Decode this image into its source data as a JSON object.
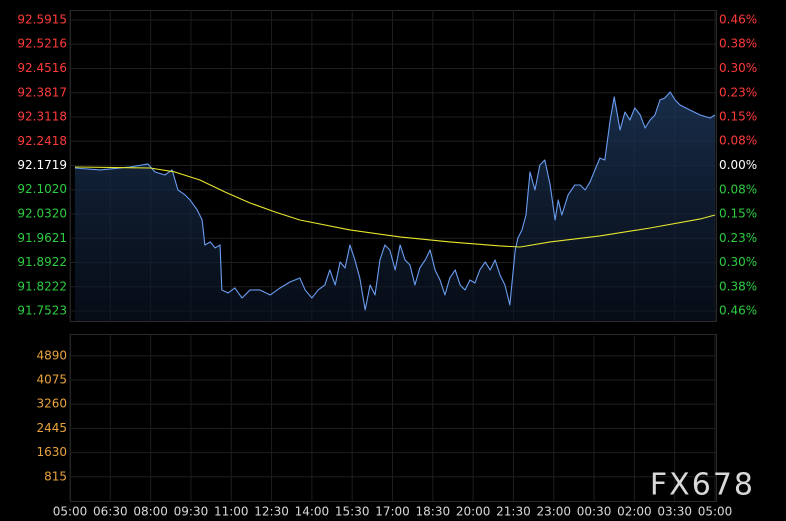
{
  "chart_data": [
    {
      "type": "line",
      "up_color": "#ff3b3b",
      "down_color": "#2ecc40",
      "flat_color": "#ffffff",
      "xlim": [
        0,
        1440
      ],
      "xticks": [
        {
          "value": 0,
          "label": "05:00"
        },
        {
          "value": 90,
          "label": "06:30"
        },
        {
          "value": 180,
          "label": "08:00"
        },
        {
          "value": 270,
          "label": "09:30"
        },
        {
          "value": 360,
          "label": "11:00"
        },
        {
          "value": 450,
          "label": "12:30"
        },
        {
          "value": 540,
          "label": "14:00"
        },
        {
          "value": 630,
          "label": "15:30"
        },
        {
          "value": 720,
          "label": "17:00"
        },
        {
          "value": 810,
          "label": "18:30"
        },
        {
          "value": 900,
          "label": "20:00"
        },
        {
          "value": 990,
          "label": "21:30"
        },
        {
          "value": 1080,
          "label": "23:00"
        },
        {
          "value": 1170,
          "label": "00:30"
        },
        {
          "value": 1260,
          "label": "02:00"
        },
        {
          "value": 1350,
          "label": "03:30"
        },
        {
          "value": 1440,
          "label": "05:00"
        }
      ],
      "ylim": [
        91.7523,
        92.5915
      ],
      "yticks": [
        92.5915,
        92.5216,
        92.4516,
        92.3817,
        92.3118,
        92.2418,
        92.1719,
        {
          "value": 92.102,
          "label": "92.1020"
        },
        {
          "value": 92.032,
          "label": "92.0320"
        },
        91.9621,
        91.8922,
        91.8222,
        91.7523
      ],
      "y2lim": [
        -0.4552,
        0.4552
      ],
      "y2ticks": [
        {
          "value": 0.4552,
          "label": "0.46%"
        },
        {
          "value": 0.3794,
          "label": "0.38%"
        },
        {
          "value": 0.3035,
          "label": "0.30%"
        },
        {
          "value": 0.2276,
          "label": "0.23%"
        },
        {
          "value": 0.1518,
          "label": "0.15%"
        },
        {
          "value": 0.0759,
          "label": "0.08%"
        },
        {
          "value": 0,
          "label": "0.00%"
        },
        {
          "value": -0.0759,
          "label": "0.08%"
        },
        {
          "value": -0.1518,
          "label": "0.15%"
        },
        {
          "value": -0.2276,
          "label": "0.23%"
        },
        {
          "value": -0.3035,
          "label": "0.30%"
        },
        {
          "value": -0.3794,
          "label": "0.38%"
        },
        {
          "value": -0.4552,
          "label": "0.46%"
        }
      ],
      "grid": true,
      "series": [
        {
          "color": "#6a9cf0",
          "area": true,
          "x": [
            11,
            67,
            134,
            174,
            190,
            212,
            228,
            241,
            257,
            268,
            284,
            295,
            301,
            313,
            324,
            335,
            339,
            353,
            368,
            384,
            402,
            424,
            447,
            469,
            491,
            513,
            525,
            540,
            554,
            569,
            580,
            592,
            603,
            614,
            625,
            636,
            647,
            659,
            670,
            681,
            692,
            703,
            714,
            726,
            737,
            748,
            759,
            770,
            781,
            793,
            804,
            815,
            826,
            837,
            848,
            860,
            871,
            882,
            893,
            904,
            915,
            927,
            938,
            949,
            960,
            971,
            982,
            994,
            1000,
            1009,
            1018,
            1027,
            1038,
            1049,
            1060,
            1072,
            1083,
            1090,
            1098,
            1112,
            1127,
            1139,
            1150,
            1161,
            1172,
            1183,
            1194,
            1206,
            1215,
            1228,
            1239,
            1250,
            1261,
            1273,
            1284,
            1295,
            1306,
            1317,
            1328,
            1340,
            1351,
            1362,
            1384,
            1407,
            1429,
            1440
          ],
          "values": [
            92.1647,
            92.159,
            92.1676,
            92.1763,
            92.1532,
            92.1446,
            92.159,
            92.1013,
            92.0869,
            92.0725,
            92.0436,
            92.0148,
            91.9427,
            91.9514,
            91.9341,
            91.9427,
            91.813,
            91.8043,
            91.8187,
            91.7899,
            91.813,
            91.813,
            91.7985,
            91.8187,
            91.836,
            91.8476,
            91.813,
            91.7899,
            91.813,
            91.8274,
            91.8706,
            91.8274,
            91.8937,
            91.8764,
            91.9427,
            91.8995,
            91.8476,
            91.7553,
            91.8274,
            91.7985,
            91.8995,
            91.9427,
            91.9283,
            91.8706,
            91.9427,
            91.8995,
            91.885,
            91.8274,
            91.8764,
            91.8995,
            91.9283,
            91.8706,
            91.8418,
            91.7985,
            91.8476,
            91.8706,
            91.8274,
            91.813,
            91.8418,
            91.8331,
            91.8706,
            91.8937,
            91.8706,
            91.8995,
            91.8562,
            91.8274,
            91.7697,
            91.9283,
            91.9629,
            91.986,
            92.0292,
            92.1532,
            92.1013,
            92.1734,
            92.1878,
            92.1157,
            92.0148,
            92.0725,
            92.0292,
            92.0869,
            92.1157,
            92.1157,
            92.1013,
            92.1244,
            92.159,
            92.1936,
            92.1878,
            92.3031,
            92.3695,
            92.2743,
            92.3262,
            92.3031,
            92.3378,
            92.3176,
            92.2801,
            92.3031,
            92.3176,
            92.3608,
            92.3666,
            92.3839,
            92.3608,
            92.3464,
            92.332,
            92.3176,
            92.3089,
            92.3176
          ]
        },
        {
          "color": "#e6e62e",
          "x": [
            11,
            179,
            234,
            290,
            346,
            402,
            458,
            513,
            625,
            737,
            848,
            960,
            1005,
            1072,
            1183,
            1295,
            1407,
            1440
          ],
          "values": [
            92.1676,
            92.1647,
            92.1532,
            92.1301,
            92.0955,
            92.0638,
            92.0379,
            92.0148,
            91.986,
            91.9658,
            91.9514,
            91.9398,
            91.9369,
            91.9514,
            91.9687,
            91.9917,
            92.0177,
            92.0292
          ]
        }
      ]
    },
    {
      "type": "bar",
      "tick_color": "#e8a33c",
      "ylim": [
        0,
        5590
      ],
      "yticks": [
        815,
        1630,
        2445,
        3260,
        4075,
        4890
      ],
      "grid": true,
      "series": []
    }
  ],
  "watermark": "FX678"
}
